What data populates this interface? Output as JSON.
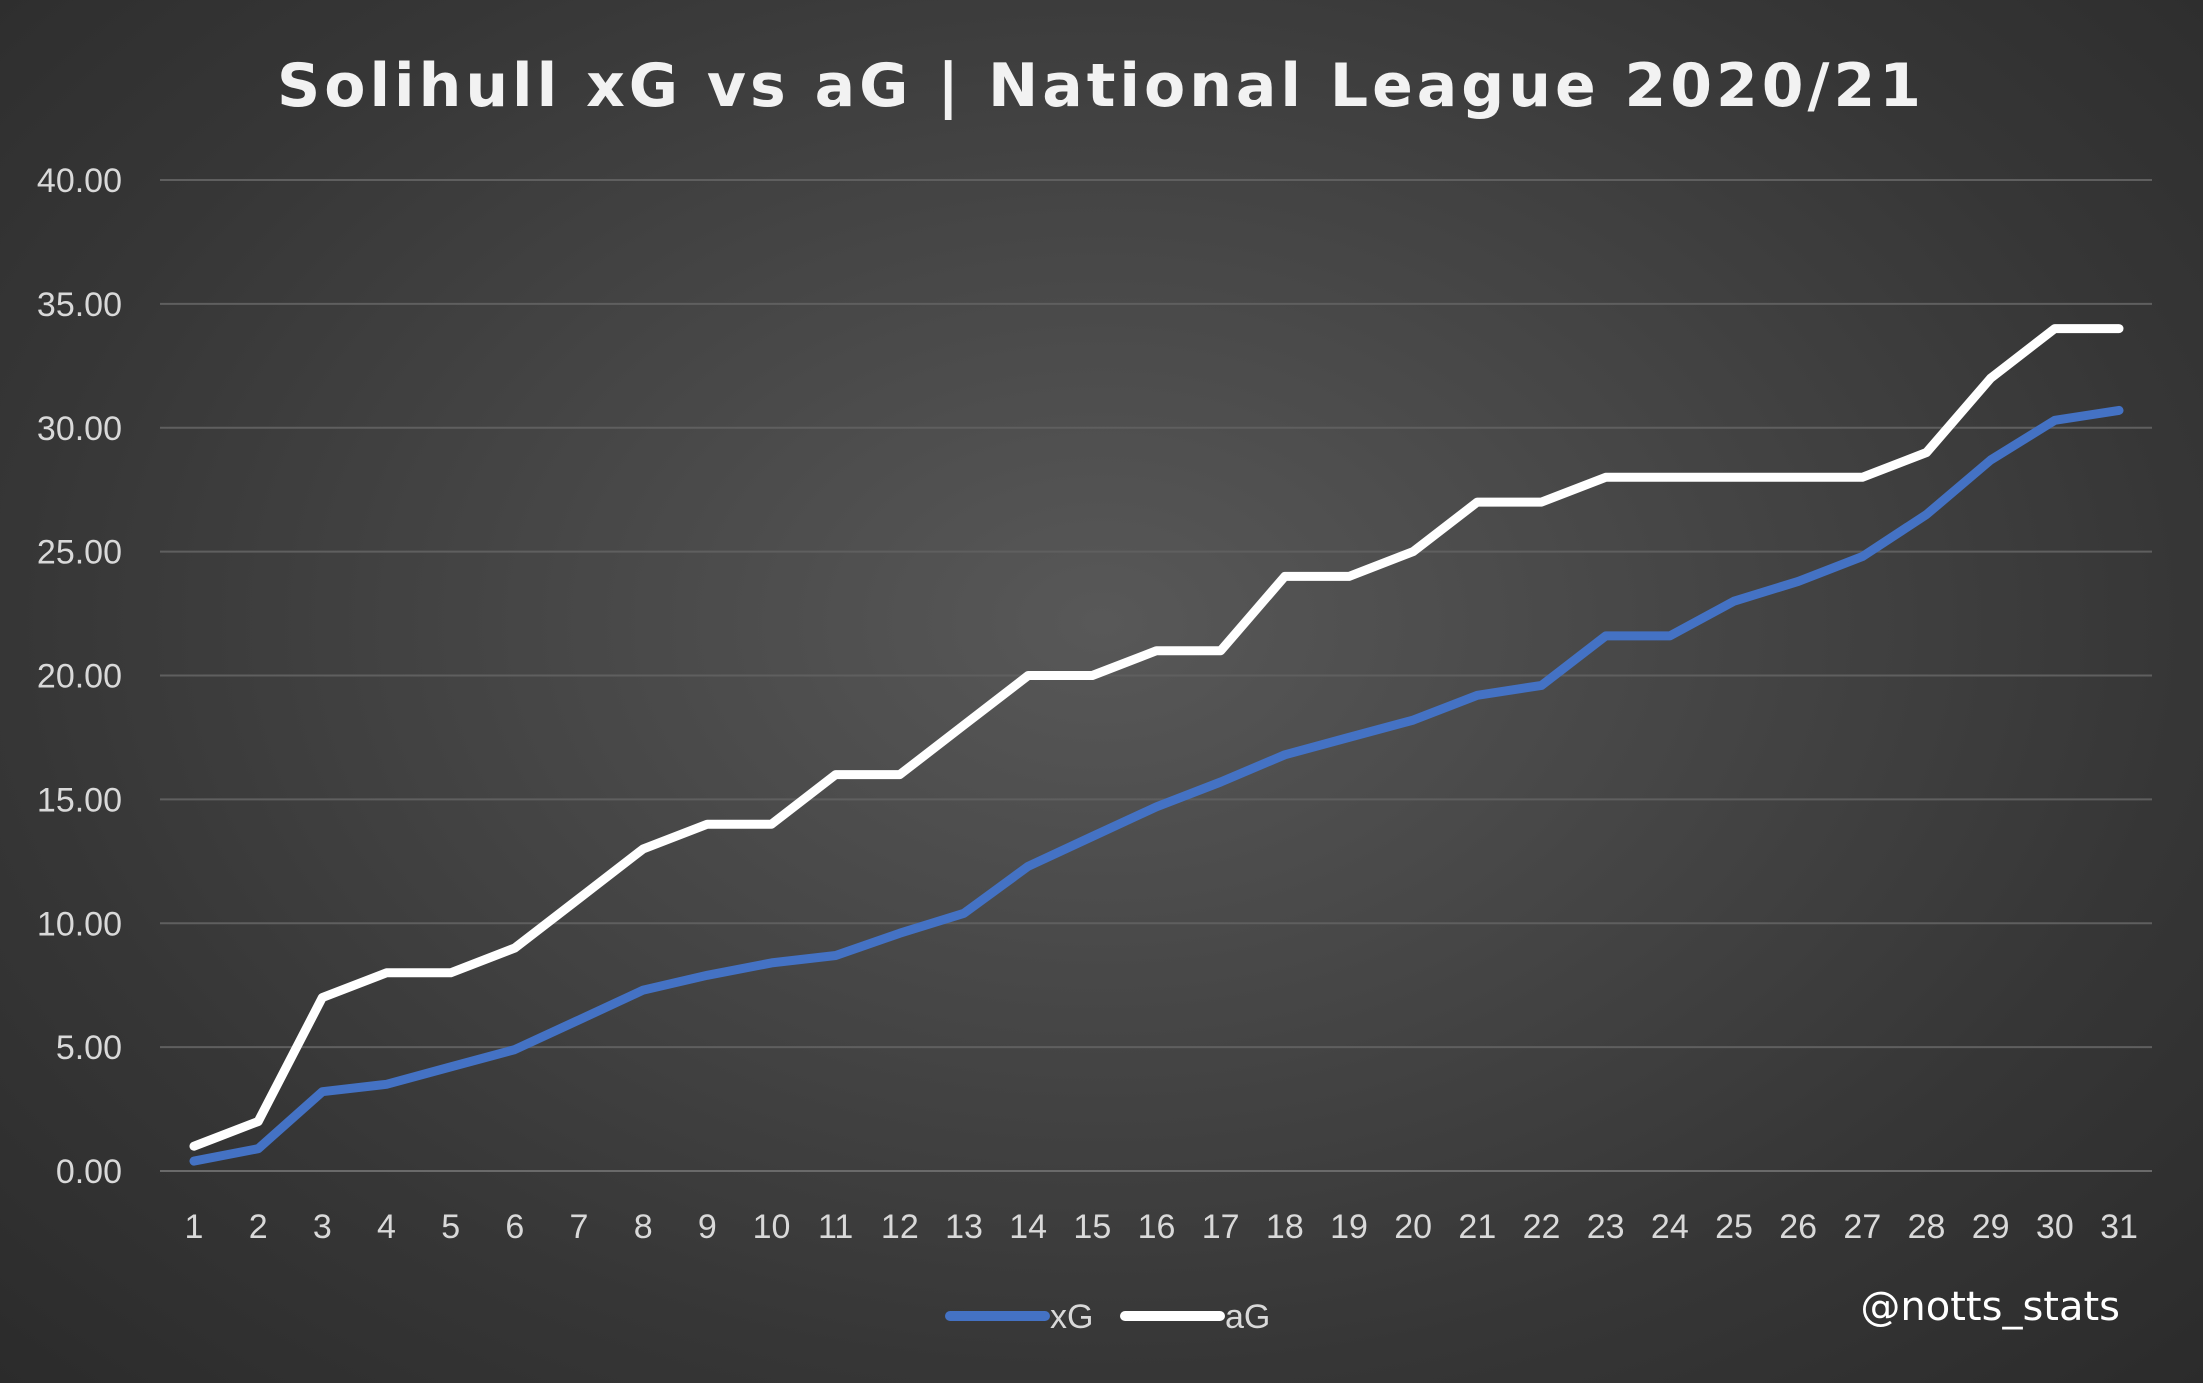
{
  "chart_data": {
    "type": "line",
    "title": "Solihull xG vs aG | National League 2020/21",
    "xlabel": "",
    "ylabel": "",
    "categories": [
      "1",
      "2",
      "3",
      "4",
      "5",
      "6",
      "7",
      "8",
      "9",
      "10",
      "11",
      "12",
      "13",
      "14",
      "15",
      "16",
      "17",
      "18",
      "19",
      "20",
      "21",
      "22",
      "23",
      "24",
      "25",
      "26",
      "27",
      "28",
      "29",
      "30",
      "31"
    ],
    "ylim": [
      0,
      40
    ],
    "yticks": [
      "0.00",
      "5.00",
      "10.00",
      "15.00",
      "20.00",
      "25.00",
      "30.00",
      "35.00",
      "40.00"
    ],
    "grid": true,
    "legend_position": "bottom",
    "series": [
      {
        "name": "xG",
        "color": "#4472c4",
        "values": [
          0.4,
          0.9,
          3.2,
          3.5,
          4.2,
          4.9,
          6.1,
          7.3,
          7.9,
          8.4,
          8.7,
          9.6,
          10.4,
          12.3,
          13.5,
          14.7,
          15.7,
          16.8,
          17.5,
          18.2,
          19.2,
          19.6,
          21.6,
          21.6,
          23.0,
          23.8,
          24.8,
          26.5,
          28.7,
          30.3,
          30.7
        ]
      },
      {
        "name": "aG",
        "color": "#ffffff",
        "values": [
          1,
          2,
          7,
          8,
          8,
          9,
          11,
          13,
          14,
          14,
          16,
          16,
          18,
          20,
          20,
          21,
          21,
          24,
          24,
          25,
          27,
          27,
          28,
          28,
          28,
          28,
          28,
          29,
          32,
          34,
          34
        ]
      }
    ]
  },
  "watermark": "@notts_stats"
}
